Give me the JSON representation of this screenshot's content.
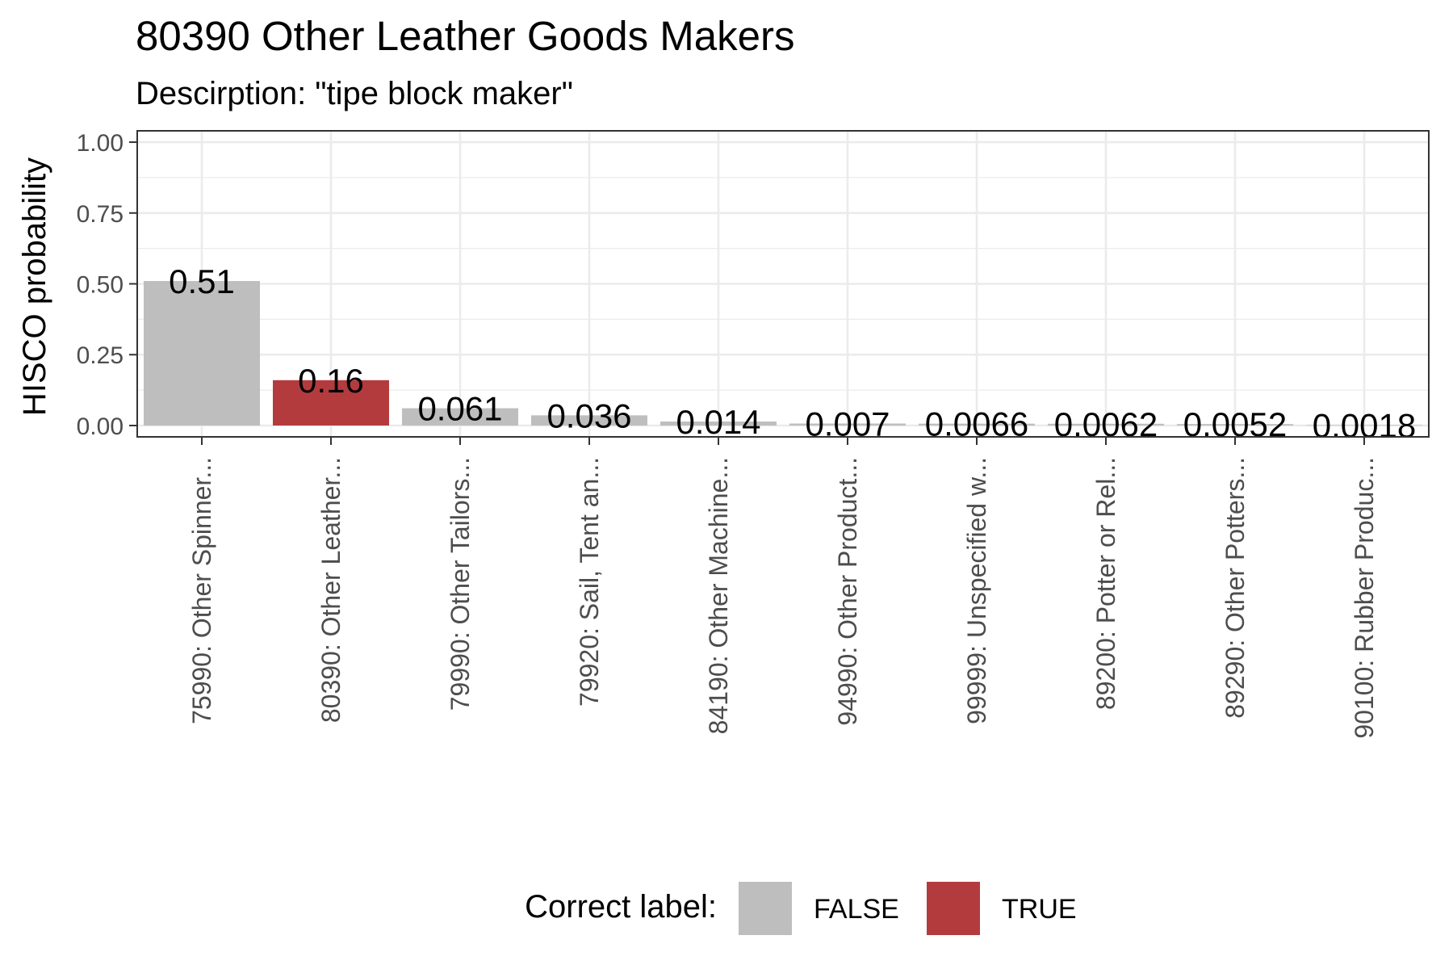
{
  "chart_data": {
    "type": "bar",
    "title": "80390 Other Leather Goods Makers",
    "subtitle": "Descirption: \"tipe block maker\"",
    "xlabel": "",
    "ylabel": "HISCO probability",
    "ylim": [
      0,
      1.0
    ],
    "yticks": [
      0.0,
      0.25,
      0.5,
      0.75,
      1.0
    ],
    "ytick_labels": [
      "0.00",
      "0.25",
      "0.50",
      "0.75",
      "1.00"
    ],
    "grid": true,
    "categories": [
      "75990: Other Spinner...",
      "80390: Other Leather...",
      "79990: Other Tailors...",
      "79920: Sail, Tent an...",
      "84190: Other Machine...",
      "94990: Other Product...",
      "99999: Unspecified w...",
      "89200: Potter or Rel...",
      "89290: Other Potters...",
      "90100: Rubber Produc..."
    ],
    "values": [
      0.51,
      0.16,
      0.061,
      0.036,
      0.014,
      0.007,
      0.0066,
      0.0062,
      0.0052,
      0.0018
    ],
    "value_labels": [
      "0.51",
      "0.16",
      "0.061",
      "0.036",
      "0.014",
      "0.007",
      "0.0066",
      "0.0062",
      "0.0052",
      "0.0018"
    ],
    "correct": [
      false,
      true,
      false,
      false,
      false,
      false,
      false,
      false,
      false,
      false
    ],
    "legend": {
      "title": "Correct label:",
      "position": "bottom",
      "items": [
        {
          "label": "FALSE",
          "color": "#bebebe"
        },
        {
          "label": "TRUE",
          "color": "#b33b3e"
        }
      ]
    },
    "colors": {
      "false": "#bebebe",
      "true": "#b33b3e",
      "grid": "#ebebeb",
      "panel_border": "#333333",
      "tick_text": "#4d4d4d"
    }
  }
}
